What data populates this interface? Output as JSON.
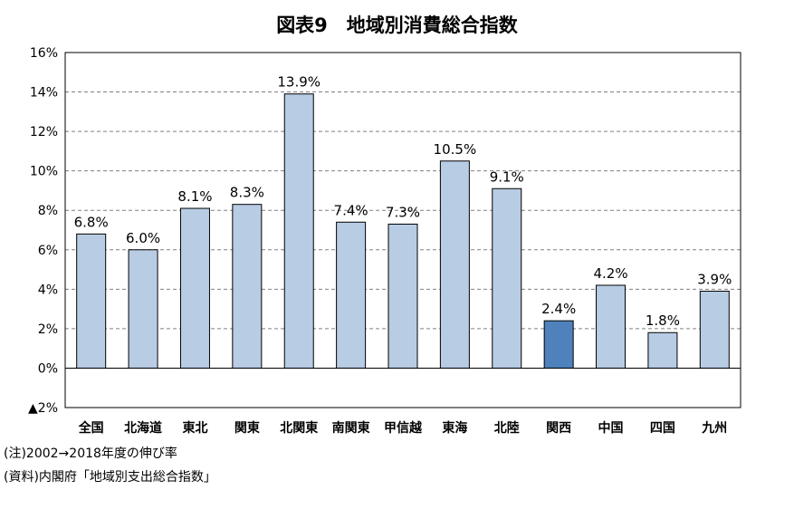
{
  "title": "図表9　地域別消費総合指数",
  "notes": {
    "note": "(注)2002→2018年度の伸び率",
    "source": "(資料)内閣府「地域別支出総合指数」"
  },
  "chart_data": {
    "type": "bar",
    "title": "図表9　地域別消費総合指数",
    "categories": [
      "全国",
      "北海道",
      "東北",
      "関東",
      "北関東",
      "南関東",
      "甲信越",
      "東海",
      "北陸",
      "関西",
      "中国",
      "四国",
      "九州"
    ],
    "values": [
      6.8,
      6.0,
      8.1,
      8.3,
      13.9,
      7.4,
      7.3,
      10.5,
      9.1,
      2.4,
      4.2,
      1.8,
      3.9
    ],
    "value_labels": [
      "6.8%",
      "6.0%",
      "8.1%",
      "8.3%",
      "13.9%",
      "7.4%",
      "7.3%",
      "10.5%",
      "9.1%",
      "2.4%",
      "4.2%",
      "1.8%",
      "3.9%"
    ],
    "ylim": [
      -2,
      16
    ],
    "yticks": [
      16,
      14,
      12,
      10,
      8,
      6,
      4,
      2,
      0,
      -2
    ],
    "ytick_labels": [
      "16%",
      "14%",
      "12%",
      "10%",
      "8%",
      "6%",
      "4%",
      "2%",
      "0%",
      "▲2%"
    ],
    "xlabel": "",
    "ylabel": "",
    "grid": "dashed horizontal",
    "highlight_category": "関西",
    "colors": {
      "bar": "#b8cce4",
      "highlight": "#4f81bd",
      "border": "#000000",
      "grid": "#808080"
    }
  }
}
